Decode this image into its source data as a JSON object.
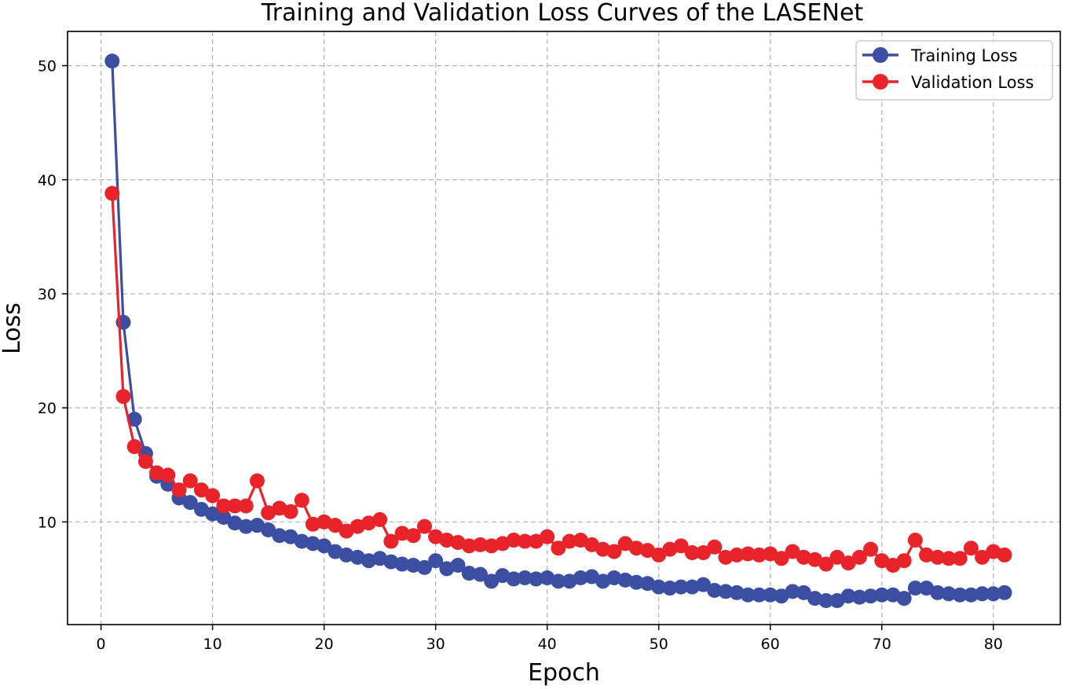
{
  "chart_data": {
    "type": "line",
    "title": "Training and Validation Loss Curves of the LASENet",
    "xlabel": "Epoch",
    "ylabel": "Loss",
    "xlim": [
      -3,
      86
    ],
    "ylim": [
      1,
      53
    ],
    "xticks": [
      0,
      10,
      20,
      30,
      40,
      50,
      60,
      70,
      80
    ],
    "yticks": [
      10,
      20,
      30,
      40,
      50
    ],
    "xtick_labels": [
      "0",
      "10",
      "20",
      "30",
      "40",
      "50",
      "60",
      "70",
      "80"
    ],
    "ytick_labels": [
      "10",
      "20",
      "30",
      "40",
      "50"
    ],
    "grid": true,
    "legend_position": "top-right",
    "x": [
      1,
      2,
      3,
      4,
      5,
      6,
      7,
      8,
      9,
      10,
      11,
      12,
      13,
      14,
      15,
      16,
      17,
      18,
      19,
      20,
      21,
      22,
      23,
      24,
      25,
      26,
      27,
      28,
      29,
      30,
      31,
      32,
      33,
      34,
      35,
      36,
      37,
      38,
      39,
      40,
      41,
      42,
      43,
      44,
      45,
      46,
      47,
      48,
      49,
      50,
      51,
      52,
      53,
      54,
      55,
      56,
      57,
      58,
      59,
      60,
      61,
      62,
      63,
      64,
      65,
      66,
      67,
      68,
      69,
      70,
      71,
      72,
      73,
      74,
      75,
      76,
      77,
      78,
      79,
      80,
      81
    ],
    "series": [
      {
        "name": "Training Loss",
        "color": "#3b4ea1",
        "values": [
          50.4,
          27.5,
          19.0,
          16.0,
          14.0,
          13.3,
          12.1,
          11.7,
          11.1,
          10.7,
          10.4,
          9.9,
          9.6,
          9.7,
          9.3,
          8.8,
          8.7,
          8.3,
          8.1,
          7.9,
          7.4,
          7.1,
          6.9,
          6.6,
          6.8,
          6.5,
          6.3,
          6.2,
          6.0,
          6.6,
          5.9,
          6.2,
          5.5,
          5.4,
          4.8,
          5.3,
          5.0,
          5.1,
          5.0,
          5.1,
          4.8,
          4.8,
          5.1,
          5.2,
          4.8,
          5.1,
          4.9,
          4.7,
          4.6,
          4.3,
          4.2,
          4.3,
          4.3,
          4.5,
          4.0,
          3.9,
          3.8,
          3.6,
          3.6,
          3.6,
          3.5,
          3.9,
          3.8,
          3.3,
          3.1,
          3.1,
          3.5,
          3.4,
          3.5,
          3.6,
          3.6,
          3.3,
          4.2,
          4.2,
          3.8,
          3.7,
          3.6,
          3.6,
          3.7,
          3.7,
          3.8
        ]
      },
      {
        "name": "Validation Loss",
        "color": "#e8232a",
        "values": [
          38.8,
          21.0,
          16.6,
          15.3,
          14.3,
          14.1,
          12.8,
          13.6,
          12.8,
          12.3,
          11.4,
          11.4,
          11.4,
          13.6,
          10.8,
          11.2,
          10.9,
          11.9,
          9.8,
          10.0,
          9.7,
          9.2,
          9.6,
          9.9,
          10.2,
          8.3,
          9.0,
          8.8,
          9.6,
          8.7,
          8.4,
          8.2,
          7.9,
          8.0,
          7.9,
          8.1,
          8.4,
          8.3,
          8.3,
          8.7,
          7.7,
          8.3,
          8.4,
          8.0,
          7.6,
          7.4,
          8.1,
          7.7,
          7.5,
          7.1,
          7.6,
          7.9,
          7.3,
          7.3,
          7.8,
          6.9,
          7.1,
          7.2,
          7.1,
          7.2,
          6.8,
          7.4,
          6.9,
          6.7,
          6.3,
          6.9,
          6.4,
          6.9,
          7.6,
          6.6,
          6.2,
          6.6,
          8.4,
          7.1,
          6.9,
          6.8,
          6.8,
          7.7,
          6.9,
          7.4,
          7.1
        ]
      }
    ]
  }
}
